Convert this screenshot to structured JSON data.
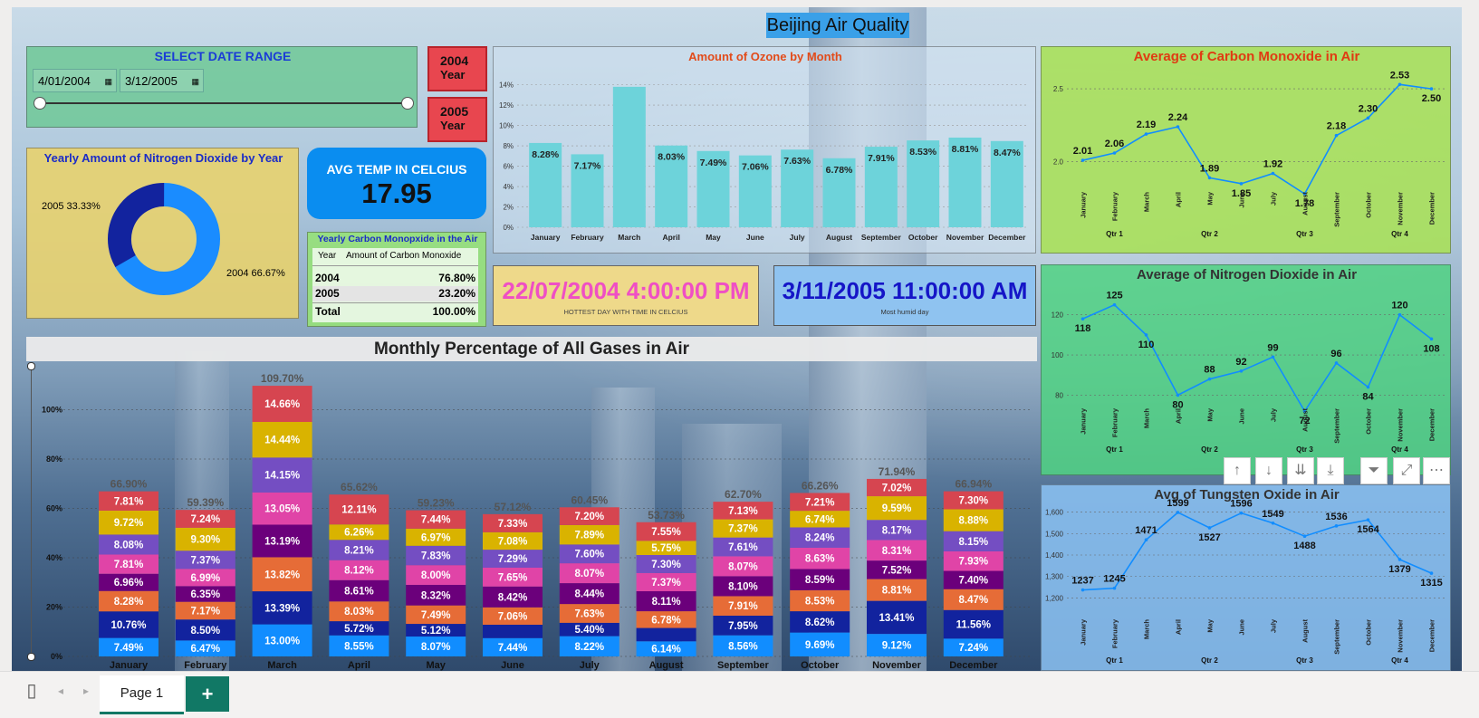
{
  "report": {
    "title": "Beijing Air Quality"
  },
  "date_range": {
    "title": "SELECT DATE RANGE",
    "start": "4/01/2004",
    "end": "3/12/2005"
  },
  "year_slicer": [
    {
      "year": "2004",
      "label": "Year"
    },
    {
      "year": "2005",
      "label": "Year"
    }
  ],
  "no2_donut": {
    "title": "Yearly Amount of Nitrogen Dioxide by Year",
    "slices": [
      {
        "label": "2004 66.67%",
        "value": 66.67,
        "color": "#1a8cff"
      },
      {
        "label": "2005 33.33%",
        "value": 33.33,
        "color": "#12239e"
      }
    ]
  },
  "avg_temp": {
    "title": "AVG TEMP IN CELCIUS",
    "value": "17.95"
  },
  "co_table": {
    "title": "Yearly Carbon Monopxide in the Air",
    "headers": [
      "Year",
      "Amount of Carbon Monoxide"
    ],
    "rows": [
      [
        "2004",
        "76.80%"
      ],
      [
        "2005",
        "23.20%"
      ]
    ],
    "total": [
      "Total",
      "100.00%"
    ]
  },
  "hottest": {
    "value": "22/07/2004 4:00:00 PM",
    "caption": "HOTTEST DAY WITH TIME IN CELCIUS"
  },
  "humid": {
    "value": "3/11/2005 11:00:00 AM",
    "caption": "Most humid day"
  },
  "months": [
    "January",
    "February",
    "March",
    "April",
    "May",
    "June",
    "July",
    "August",
    "September",
    "October",
    "November",
    "December"
  ],
  "quarters": [
    "Qtr 1",
    "Qtr 2",
    "Qtr 3",
    "Qtr 4"
  ],
  "ozone": {
    "title": "Amount of Ozone by Month",
    "yticks": [
      "0%",
      "2%",
      "4%",
      "6%",
      "8%",
      "10%",
      "12%",
      "14%"
    ],
    "values": [
      8.28,
      7.17,
      13.8,
      8.03,
      7.49,
      7.06,
      7.63,
      6.78,
      7.91,
      8.53,
      8.81,
      8.47
    ],
    "labels": [
      "8.28%",
      "7.17%",
      "",
      "8.03%",
      "7.49%",
      "7.06%",
      "7.63%",
      "6.78%",
      "7.91%",
      "8.53%",
      "8.81%",
      "8.47%"
    ],
    "bar_color": "#6dd3da"
  },
  "co_line": {
    "title": "Average of Carbon Monoxide in Air",
    "yticks": [
      "2.0",
      "2.5"
    ],
    "values": [
      2.01,
      2.06,
      2.19,
      2.24,
      1.89,
      1.85,
      1.92,
      1.78,
      2.18,
      2.3,
      2.53,
      2.5
    ],
    "labels": [
      "2.01",
      "2.06",
      "2.19",
      "2.24",
      "1.89",
      "1.85",
      "1.92",
      "1.78",
      "2.18",
      "2.30",
      "2.53",
      "2.50"
    ]
  },
  "no2_line": {
    "title": "Average of Nitrogen Dioxide in Air",
    "yticks": [
      "80",
      "100",
      "120"
    ],
    "values": [
      118,
      125,
      110,
      80,
      88,
      92,
      99,
      72,
      96,
      84,
      120,
      108
    ],
    "labels": [
      "118",
      "125",
      "110",
      "80",
      "88",
      "92",
      "99",
      "72",
      "96",
      "84",
      "120",
      "108"
    ]
  },
  "tungsten_line": {
    "title": "Avg of Tungsten Oxide in Air",
    "yticks": [
      "1,200",
      "1,300",
      "1,400",
      "1,500",
      "1,600"
    ],
    "values": [
      1237,
      1245,
      1471,
      1599,
      1527,
      1596,
      1549,
      1488,
      1536,
      1564,
      1379,
      1315
    ],
    "labels": [
      "1237",
      "1245",
      "1471",
      "1599",
      "1527",
      "1596",
      "1549",
      "1488",
      "1536",
      "1564",
      "1379",
      "1315"
    ]
  },
  "gases": {
    "title": "Monthly Percentage of All Gases in Air",
    "yticks": [
      "0%",
      "20%",
      "40%",
      "60%",
      "80%",
      "100%"
    ],
    "colors": [
      "#118dff",
      "#12239e",
      "#e66c37",
      "#6b007b",
      "#e044a7",
      "#744ec2",
      "#d9b300",
      "#d64550"
    ],
    "totals": [
      "66.90%",
      "59.39%",
      "109.70%",
      "65.62%",
      "59.23%",
      "57.12%",
      "60.45%",
      "53.73%",
      "62.70%",
      "66.26%",
      "71.94%",
      "66.94%"
    ],
    "segments": [
      [
        "7.49%",
        "10.76%",
        "8.28%",
        "6.96%",
        "7.81%",
        "8.08%",
        "9.72%",
        "7.81%"
      ],
      [
        "6.47%",
        "8.50%",
        "7.17%",
        "6.35%",
        "6.99%",
        "7.37%",
        "9.30%",
        "7.24%"
      ],
      [
        "13.00%",
        "13.39%",
        "13.82%",
        "13.19%",
        "13.05%",
        "14.15%",
        "14.44%",
        "14.66%"
      ],
      [
        "8.55%",
        "5.72%",
        "8.03%",
        "8.61%",
        "8.12%",
        "8.21%",
        "6.26%",
        "12.11%"
      ],
      [
        "8.07%",
        "5.12%",
        "7.49%",
        "8.32%",
        "8.00%",
        "7.83%",
        "6.97%",
        "7.44%"
      ],
      [
        "7.44%",
        "",
        "7.06%",
        "8.42%",
        "7.65%",
        "7.29%",
        "7.08%",
        "7.33%"
      ],
      [
        "8.22%",
        "5.40%",
        "7.63%",
        "8.44%",
        "8.07%",
        "7.60%",
        "7.89%",
        "7.20%"
      ],
      [
        "6.14%",
        "",
        "6.78%",
        "8.11%",
        "7.37%",
        "7.30%",
        "5.75%",
        "7.55%"
      ],
      [
        "8.56%",
        "7.95%",
        "7.91%",
        "8.10%",
        "8.07%",
        "7.61%",
        "7.37%",
        "7.13%"
      ],
      [
        "9.69%",
        "8.62%",
        "8.53%",
        "8.59%",
        "8.63%",
        "8.24%",
        "6.74%",
        "7.21%"
      ],
      [
        "9.12%",
        "13.41%",
        "8.81%",
        "7.52%",
        "8.31%",
        "8.17%",
        "9.59%",
        "7.02%"
      ],
      [
        "7.24%",
        "11.56%",
        "8.47%",
        "7.40%",
        "7.93%",
        "8.15%",
        "8.88%",
        "7.30%"
      ]
    ]
  },
  "visual_toolbar": [
    {
      "icon": "arrow-up-icon",
      "glyph": "↑"
    },
    {
      "icon": "arrow-down-icon",
      "glyph": "↓"
    },
    {
      "icon": "double-arrow-down-icon",
      "glyph": "⇊"
    },
    {
      "icon": "expand-hierarchy-icon",
      "glyph": "⤓"
    },
    {
      "icon": "filter-icon",
      "glyph": "⏷"
    },
    {
      "icon": "focus-mode-icon",
      "glyph": "⤢"
    },
    {
      "icon": "more-options-icon",
      "glyph": "⋯"
    }
  ],
  "page_tabs": {
    "active": "Page 1",
    "add": "+"
  }
}
